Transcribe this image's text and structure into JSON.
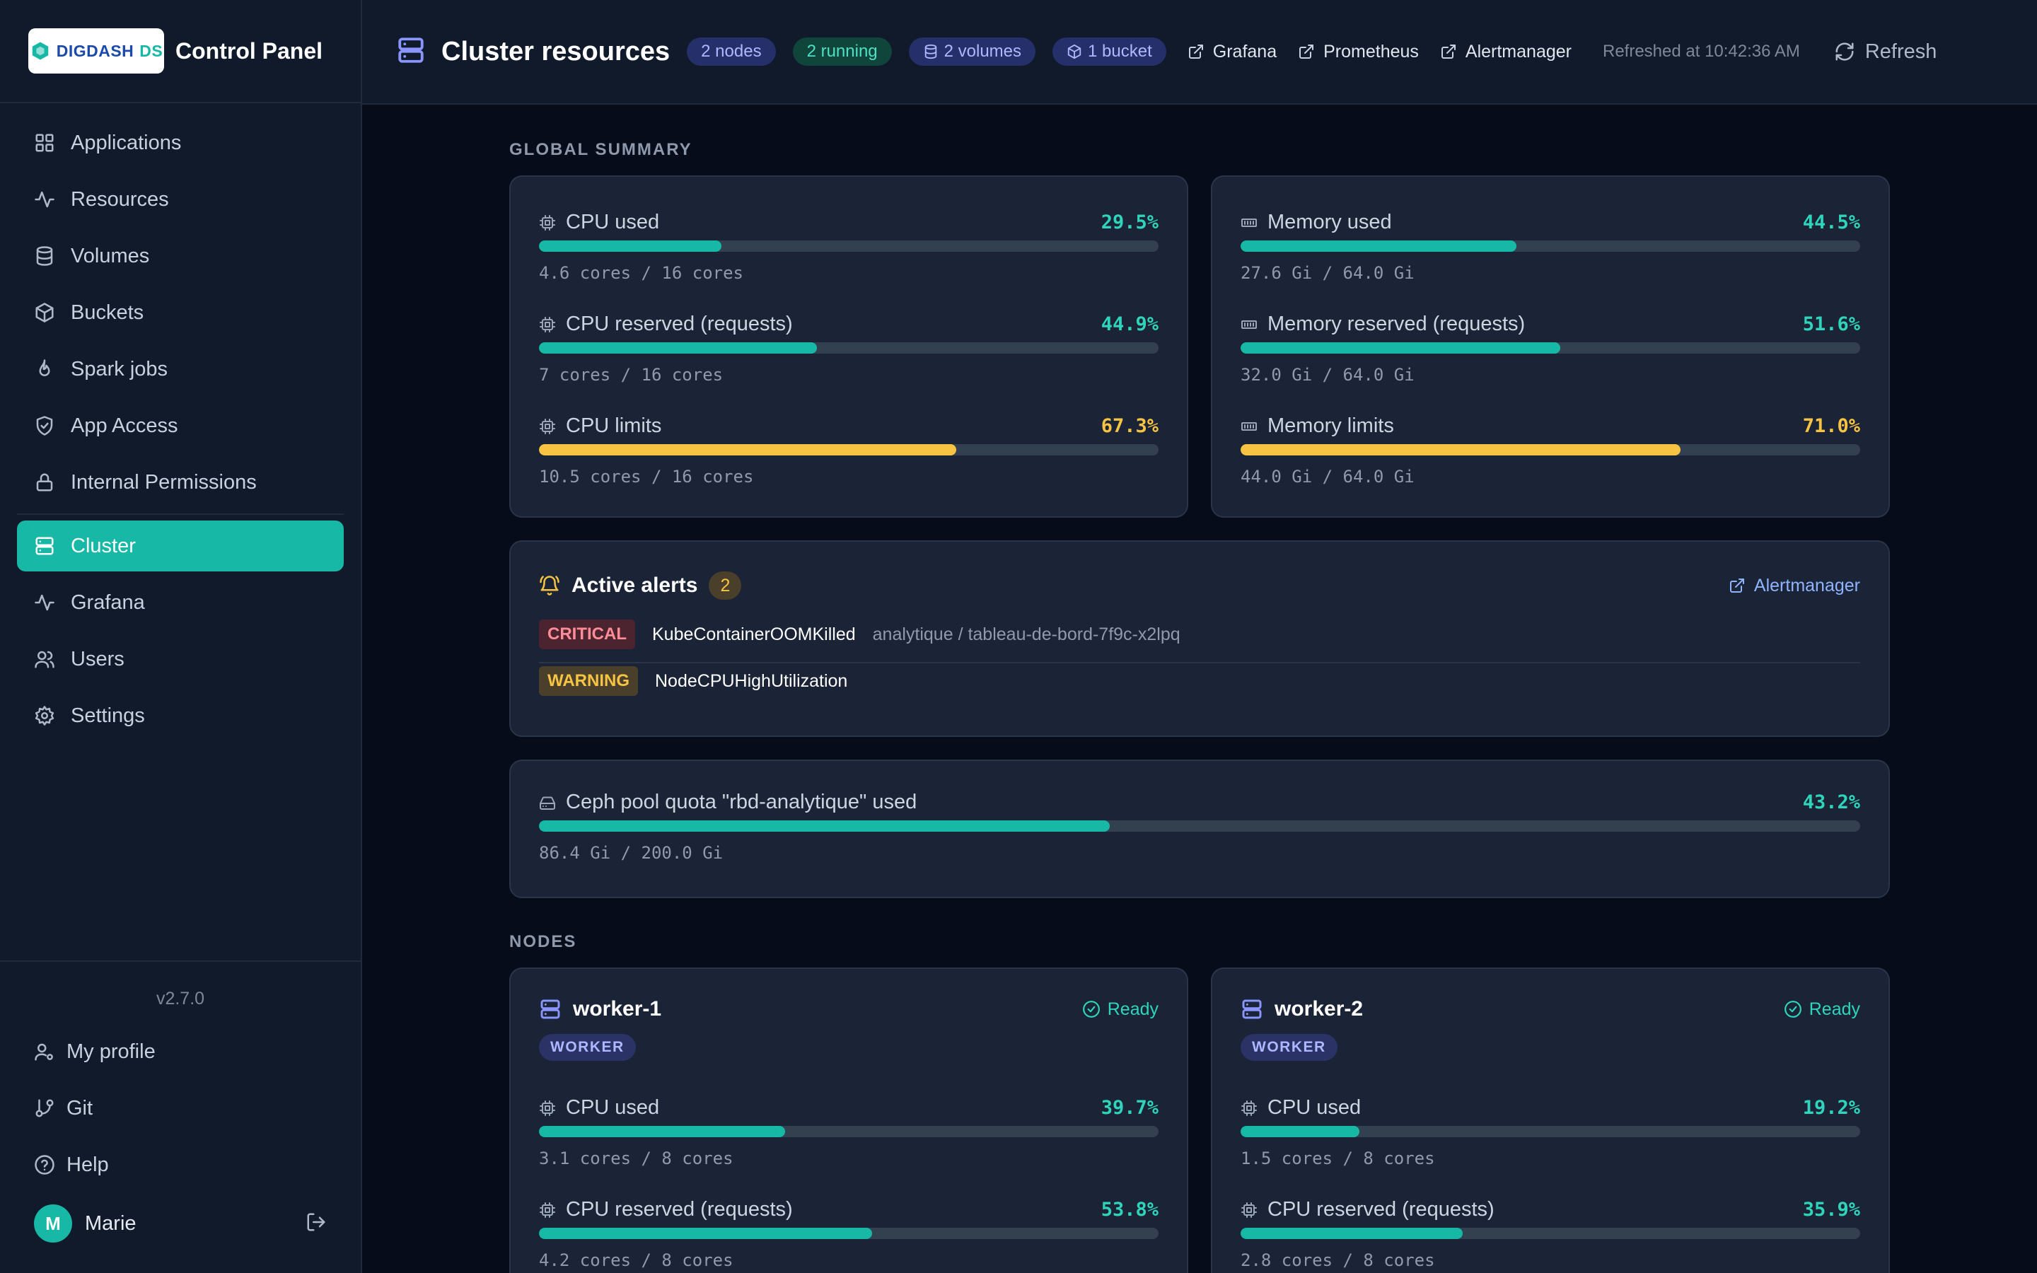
{
  "brand": {
    "logo_text_a": "DIGDASH",
    "logo_text_b": "DS",
    "title": "Control Panel"
  },
  "sidebar": {
    "items": [
      {
        "label": "Applications",
        "icon": "grid-icon"
      },
      {
        "label": "Resources",
        "icon": "activity-icon"
      },
      {
        "label": "Volumes",
        "icon": "database-icon"
      },
      {
        "label": "Buckets",
        "icon": "box-icon"
      },
      {
        "label": "Spark jobs",
        "icon": "flame-icon"
      },
      {
        "label": "App Access",
        "icon": "shield-check-icon"
      },
      {
        "label": "Internal Permissions",
        "icon": "lock-icon"
      },
      {
        "label": "Cluster",
        "icon": "server-icon",
        "active": true
      },
      {
        "label": "Grafana",
        "icon": "activity-icon"
      },
      {
        "label": "Users",
        "icon": "users-icon"
      },
      {
        "label": "Settings",
        "icon": "gear-icon"
      }
    ],
    "version": "v2.7.0",
    "footer": [
      {
        "label": "My profile",
        "icon": "user-cog-icon"
      },
      {
        "label": "Git",
        "icon": "git-branch-icon"
      },
      {
        "label": "Help",
        "icon": "help-circle-icon"
      }
    ],
    "user": {
      "initial": "M",
      "name": "Marie"
    }
  },
  "header": {
    "title": "Cluster resources",
    "pills": {
      "nodes": "2 nodes",
      "running": "2 running",
      "volumes": "2 volumes",
      "bucket": "1 bucket"
    },
    "links": {
      "grafana": "Grafana",
      "prometheus": "Prometheus",
      "alertmanager": "Alertmanager"
    },
    "refreshed": "Refreshed at 10:42:36 AM",
    "refresh_label": "Refresh"
  },
  "global_summary": {
    "label": "GLOBAL SUMMARY",
    "cpu": [
      {
        "label": "CPU used",
        "pct": "29.5%",
        "value": 29.5,
        "sub": "4.6 cores / 16 cores",
        "color": "teal"
      },
      {
        "label": "CPU reserved (requests)",
        "pct": "44.9%",
        "value": 44.9,
        "sub": "7 cores / 16 cores",
        "color": "teal"
      },
      {
        "label": "CPU limits",
        "pct": "67.3%",
        "value": 67.3,
        "sub": "10.5 cores / 16 cores",
        "color": "amber"
      }
    ],
    "memory": [
      {
        "label": "Memory used",
        "pct": "44.5%",
        "value": 44.5,
        "sub": "27.6 Gi / 64.0 Gi",
        "color": "teal"
      },
      {
        "label": "Memory reserved (requests)",
        "pct": "51.6%",
        "value": 51.6,
        "sub": "32.0 Gi / 64.0 Gi",
        "color": "teal"
      },
      {
        "label": "Memory limits",
        "pct": "71.0%",
        "value": 71.0,
        "sub": "44.0 Gi / 64.0 Gi",
        "color": "amber"
      }
    ]
  },
  "alerts": {
    "title": "Active alerts",
    "count": "2",
    "link": "Alertmanager",
    "items": [
      {
        "severity": "CRITICAL",
        "name": "KubeContainerOOMKilled",
        "target": "analytique / tableau-de-bord-7f9c-x2lpq"
      },
      {
        "severity": "WARNING",
        "name": "NodeCPUHighUtilization",
        "target": ""
      }
    ]
  },
  "ceph": {
    "label": "Ceph pool quota \"rbd-analytique\" used",
    "pct": "43.2%",
    "value": 43.2,
    "sub": "86.4 Gi / 200.0 Gi"
  },
  "nodes": {
    "label": "NODES",
    "items": [
      {
        "name": "worker-1",
        "status": "Ready",
        "role": "WORKER",
        "metrics": [
          {
            "label": "CPU used",
            "pct": "39.7%",
            "value": 39.7,
            "sub": "3.1 cores / 8 cores"
          },
          {
            "label": "CPU reserved (requests)",
            "pct": "53.8%",
            "value": 53.8,
            "sub": "4.2 cores / 8 cores"
          }
        ]
      },
      {
        "name": "worker-2",
        "status": "Ready",
        "role": "WORKER",
        "metrics": [
          {
            "label": "CPU used",
            "pct": "19.2%",
            "value": 19.2,
            "sub": "1.5 cores / 8 cores"
          },
          {
            "label": "CPU reserved (requests)",
            "pct": "35.9%",
            "value": 35.9,
            "sub": "2.8 cores / 8 cores"
          }
        ]
      }
    ]
  },
  "colors": {
    "accent": "#17b8a6",
    "warning": "#f6c343",
    "critical": "#ff8d98",
    "indigo": "#8b95ff"
  }
}
